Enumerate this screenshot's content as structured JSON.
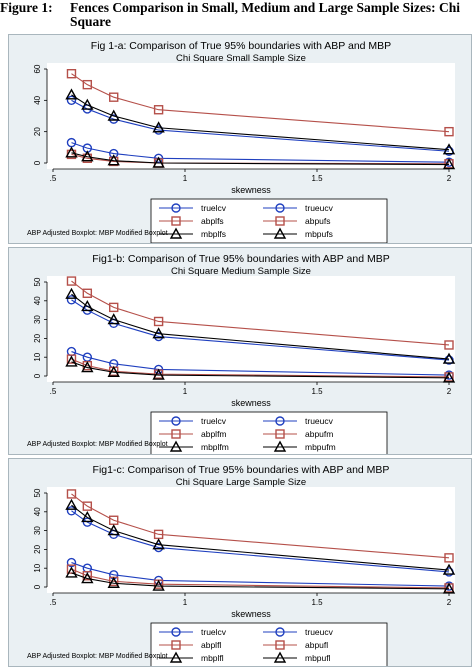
{
  "figure_label": "Figure 1:",
  "figure_caption": "Fences Comparison in Small, Medium and Large Sample Sizes: Chi\nSquare",
  "colors": {
    "panel_bg": "#eaf0f3",
    "blue": "#1f3fbf",
    "red": "#b5504a",
    "black": "#000000"
  },
  "chart_data": [
    {
      "type": "line",
      "title": "Fig 1-a: Comparison of True 95% boundaries with ABP and MBP",
      "subtitle": "Chi Square Small Sample Size",
      "xlabel": "skewness",
      "ylabel": "",
      "xlim": [
        0.5,
        2.0
      ],
      "ylim": [
        0,
        60
      ],
      "xticks": [
        ".5",
        "1",
        "1.5",
        "2"
      ],
      "xtick_values": [
        0.5,
        1,
        1.5,
        2
      ],
      "yticks": [
        "0",
        "20",
        "40",
        "60"
      ],
      "ytick_values": [
        0,
        20,
        40,
        60
      ],
      "x": [
        0.57,
        0.63,
        0.73,
        0.9,
        2.0
      ],
      "series": [
        {
          "name": "truelcv",
          "color": "#1f3fbf",
          "marker": "circle",
          "values": [
            13,
            9.5,
            6,
            3,
            0.5
          ]
        },
        {
          "name": "trueucv",
          "color": "#1f3fbf",
          "marker": "circle",
          "values": [
            40,
            34.5,
            28,
            21,
            7.5
          ]
        },
        {
          "name": "abplfs",
          "color": "#b5504a",
          "marker": "square",
          "values": [
            5.5,
            3,
            1,
            0,
            -0.5
          ]
        },
        {
          "name": "abpufs",
          "color": "#b5504a",
          "marker": "square",
          "values": [
            57,
            50,
            42,
            34,
            20
          ]
        },
        {
          "name": "mbplfs",
          "color": "#000000",
          "marker": "triangle",
          "values": [
            6.5,
            4,
            1.5,
            0,
            -1
          ]
        },
        {
          "name": "mbpufs",
          "color": "#000000",
          "marker": "triangle",
          "values": [
            43.5,
            37,
            30,
            22.5,
            8.5
          ]
        }
      ],
      "legend_position": "bottom",
      "note": "ABP Adjusted Boxplot: MBP Modified Boxplot"
    },
    {
      "type": "line",
      "title": "Fig1-b: Comparison of True 95% boundaries with ABP and MBP",
      "subtitle": "Chi Square Medium Sample Size",
      "xlabel": "skewness",
      "ylabel": "",
      "xlim": [
        0.5,
        2.0
      ],
      "ylim": [
        0,
        50
      ],
      "xticks": [
        ".5",
        "1",
        "1.5",
        "2"
      ],
      "xtick_values": [
        0.5,
        1,
        1.5,
        2
      ],
      "yticks": [
        "0",
        "10",
        "20",
        "30",
        "40",
        "50"
      ],
      "ytick_values": [
        0,
        10,
        20,
        30,
        40,
        50
      ],
      "x": [
        0.57,
        0.63,
        0.73,
        0.9,
        2.0
      ],
      "series": [
        {
          "name": "truelcv",
          "color": "#1f3fbf",
          "marker": "circle",
          "values": [
            13,
            10,
            6.5,
            3.5,
            0.5
          ]
        },
        {
          "name": "trueucv",
          "color": "#1f3fbf",
          "marker": "circle",
          "values": [
            40.5,
            35,
            28,
            21,
            8.5
          ]
        },
        {
          "name": "abplfm",
          "color": "#b5504a",
          "marker": "square",
          "values": [
            9,
            5.5,
            2.5,
            1,
            -0.5
          ]
        },
        {
          "name": "abpufm",
          "color": "#b5504a",
          "marker": "square",
          "values": [
            50.5,
            44,
            36.5,
            29,
            16.5
          ]
        },
        {
          "name": "mbplfm",
          "color": "#000000",
          "marker": "triangle",
          "values": [
            7.5,
            4.5,
            2,
            0.5,
            -1
          ]
        },
        {
          "name": "mbpufm",
          "color": "#000000",
          "marker": "triangle",
          "values": [
            43.5,
            37,
            30,
            22.5,
            9
          ]
        }
      ],
      "legend_position": "bottom",
      "note": "ABP Adjusted Boxplot: MBP Modified Boxplot"
    },
    {
      "type": "line",
      "title": "Fig1-c: Comparison of True 95% boundaries with ABP and MBP",
      "subtitle": "Chi Square Large Sample Size",
      "xlabel": "skewness",
      "ylabel": "",
      "xlim": [
        0.5,
        2.0
      ],
      "ylim": [
        0,
        50
      ],
      "xticks": [
        ".5",
        "1",
        "1.5",
        "2"
      ],
      "xtick_values": [
        0.5,
        1,
        1.5,
        2
      ],
      "yticks": [
        "0",
        "10",
        "20",
        "30",
        "40",
        "50"
      ],
      "ytick_values": [
        0,
        10,
        20,
        30,
        40,
        50
      ],
      "x": [
        0.57,
        0.63,
        0.73,
        0.9,
        2.0
      ],
      "series": [
        {
          "name": "truelcv",
          "color": "#1f3fbf",
          "marker": "circle",
          "values": [
            13,
            10,
            6.5,
            3.5,
            0.5
          ]
        },
        {
          "name": "trueucv",
          "color": "#1f3fbf",
          "marker": "circle",
          "values": [
            40.5,
            34.5,
            28,
            21,
            8
          ]
        },
        {
          "name": "abplfl",
          "color": "#b5504a",
          "marker": "square",
          "values": [
            9.5,
            6,
            3,
            1.5,
            -0.5
          ]
        },
        {
          "name": "abpufl",
          "color": "#b5504a",
          "marker": "square",
          "values": [
            49.5,
            43,
            35.5,
            28,
            15.5
          ]
        },
        {
          "name": "mbplfl",
          "color": "#000000",
          "marker": "triangle",
          "values": [
            7.5,
            4.5,
            2,
            0.5,
            -1
          ]
        },
        {
          "name": "mbpufl",
          "color": "#000000",
          "marker": "triangle",
          "values": [
            43.5,
            37,
            30,
            22.5,
            9
          ]
        }
      ],
      "legend_position": "bottom",
      "note": "ABP Adjusted Boxplot: MBP Modified Boxplot"
    }
  ]
}
